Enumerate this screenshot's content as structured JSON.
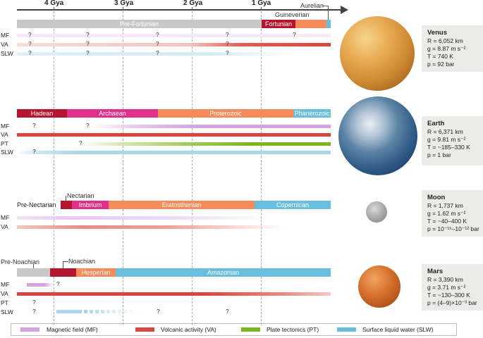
{
  "timeline": {
    "gya_labels": [
      "4 Gya",
      "3 Gya",
      "2 Gya",
      "1 Gya"
    ]
  },
  "colors": {
    "magnetic_field": "#d4a3e0",
    "volcanic_activity": "#d9463e",
    "plate_tectonics": "#7ab61f",
    "surface_liquid_water": "#a9d6e8",
    "eon_dark_red": "#b3162e",
    "eon_magenta": "#e0318a",
    "eon_orange": "#f58a5b",
    "eon_blue": "#69bedb",
    "eon_gray": "#c8c8c8"
  },
  "venus": {
    "eons": {
      "pre_fortunian": "Pre-Fortunian",
      "fortunian": "Fortunian",
      "guineverian": "Guineverian",
      "aurelian": "Aurelian"
    },
    "rows": [
      "MF",
      "VA",
      "SLW"
    ],
    "marks": {
      "q": "?"
    },
    "info": {
      "name": "Venus",
      "r": "R = 6,052 km",
      "g": "g = 8.87 m s⁻²",
      "t": "T = 740 K",
      "p": "p = 92 bar"
    }
  },
  "earth": {
    "eons": {
      "hadean": "Hadean",
      "archaean": "Archaean",
      "proterozoic": "Proterozoic",
      "phanerozoic": "Phanerozoic"
    },
    "rows": [
      "MF",
      "VA",
      "PT",
      "SLW"
    ],
    "marks": {
      "q": "?"
    },
    "info": {
      "name": "Earth",
      "r": "R = 6,371 km",
      "g": "g = 9.81 m s⁻²",
      "t": "T = ~185–330 K",
      "p": "p = 1 bar"
    }
  },
  "moon": {
    "eons": {
      "pre_nectarian": "Pre-Nectarian",
      "nectarian": "Nectarian",
      "imbrium": "Imbrium",
      "eratosthenian": "Eratosthenian",
      "copernican": "Copernican"
    },
    "rows": [
      "MF",
      "VA"
    ],
    "info": {
      "name": "Moon",
      "r": "R = 1,737 km",
      "g": "g = 1.62 m s⁻²",
      "t": "T = ~40–400 K",
      "p": "p = 10⁻¹⁵–10⁻¹² bar"
    }
  },
  "mars": {
    "eons": {
      "pre_noachian": "Pre-Noachian",
      "noachian": "Noachian",
      "hesperian": "Hesperian",
      "amazonian": "Amazonian"
    },
    "rows": [
      "MF",
      "VA",
      "PT",
      "SLW"
    ],
    "marks": {
      "q": "?"
    },
    "info": {
      "name": "Mars",
      "r": "R = 3,390 km",
      "g": "g = 3.71 m s⁻²",
      "t": "T = ~130–300 K",
      "p": "p = (4–9)×10⁻³ bar"
    }
  },
  "legend": {
    "mf": "Magnetic field (MF)",
    "va": "Volcanic activity (VA)",
    "pt": "Plate tectonics (PT)",
    "slw": "Surface liquid water (SLW)"
  }
}
